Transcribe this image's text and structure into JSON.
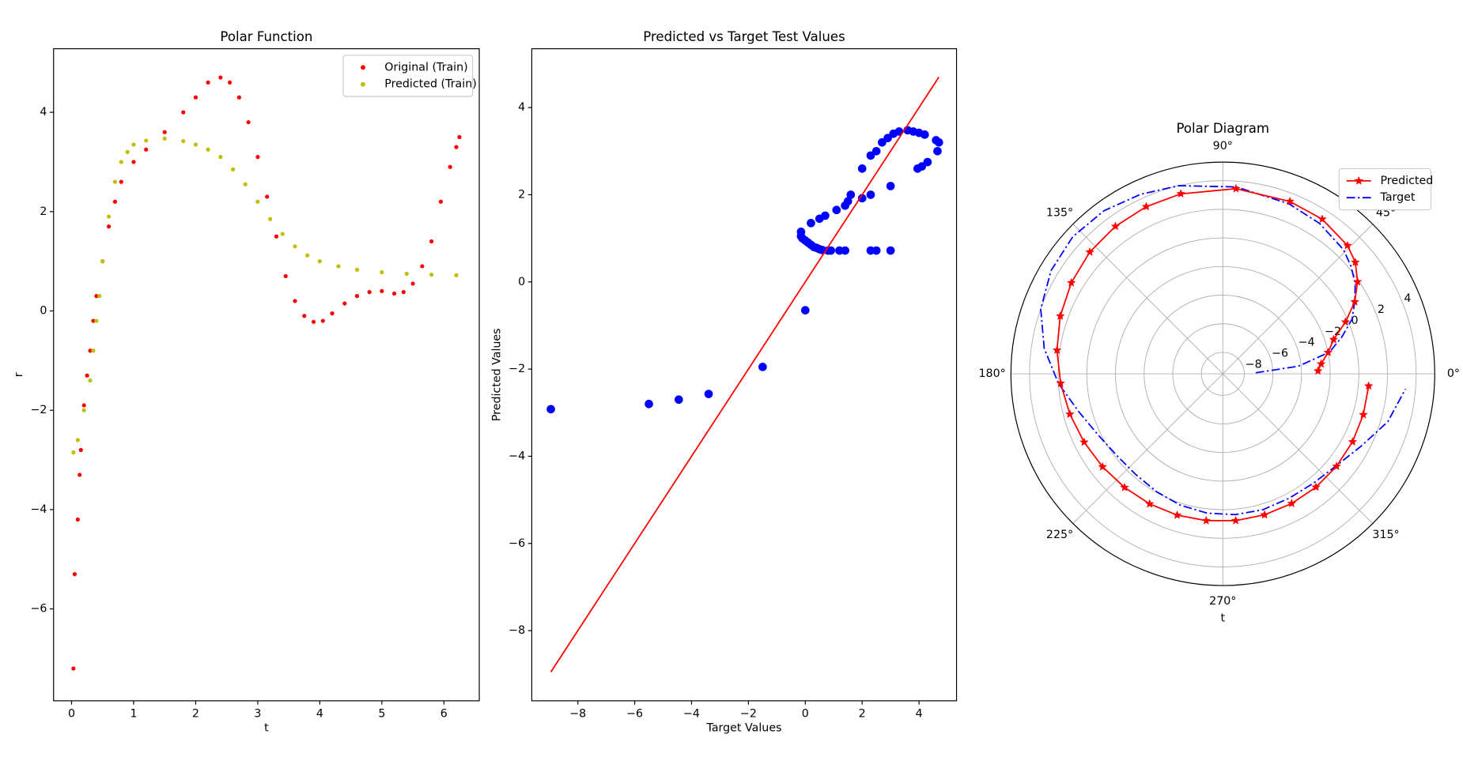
{
  "chart_data": [
    {
      "type": "scatter",
      "title": "Polar Function",
      "xlabel": "t",
      "ylabel": "r",
      "xlim": [
        -0.29,
        6.57
      ],
      "ylim": [
        -7.85,
        5.28
      ],
      "xticks": [
        0,
        1,
        2,
        3,
        4,
        5,
        6
      ],
      "yticks": [
        {
          "value": -6,
          "label": "−6"
        },
        {
          "value": -4,
          "label": "−4"
        },
        {
          "value": -2,
          "label": "−2"
        },
        0,
        2,
        4
      ],
      "legend": "upper right",
      "series": [
        {
          "name": "Original (Train)",
          "color": "#ff0000",
          "marker": "o",
          "linestyle": "none",
          "x": [
            0.03,
            0.05,
            0.1,
            0.13,
            0.15,
            0.2,
            0.25,
            0.3,
            0.35,
            0.4,
            0.5,
            0.6,
            0.7,
            0.8,
            1.0,
            1.2,
            1.5,
            1.8,
            2.0,
            2.2,
            2.4,
            2.55,
            2.7,
            2.85,
            3.0,
            3.15,
            3.3,
            3.45,
            3.6,
            3.75,
            3.9,
            4.05,
            4.2,
            4.4,
            4.6,
            4.8,
            5.0,
            5.2,
            5.35,
            5.5,
            5.65,
            5.8,
            5.95,
            6.1,
            6.2,
            6.25
          ],
          "values": [
            -7.2,
            -5.3,
            -4.2,
            -3.3,
            -2.8,
            -1.9,
            -1.3,
            -0.8,
            -0.2,
            0.3,
            1.0,
            1.7,
            2.2,
            2.6,
            3.0,
            3.25,
            3.6,
            4.0,
            4.3,
            4.6,
            4.7,
            4.6,
            4.3,
            3.8,
            3.1,
            2.3,
            1.5,
            0.7,
            0.2,
            -0.1,
            -0.22,
            -0.2,
            -0.05,
            0.15,
            0.3,
            0.38,
            0.4,
            0.35,
            0.38,
            0.55,
            0.9,
            1.4,
            2.2,
            2.9,
            3.3,
            3.5
          ]
        },
        {
          "name": "Predicted (Train)",
          "color": "#bfbf00",
          "marker": "o",
          "linestyle": "none",
          "x": [
            0.03,
            0.1,
            0.2,
            0.3,
            0.35,
            0.4,
            0.45,
            0.5,
            0.6,
            0.7,
            0.8,
            0.9,
            1.0,
            1.2,
            1.5,
            1.8,
            2.0,
            2.2,
            2.4,
            2.6,
            2.8,
            3.0,
            3.2,
            3.4,
            3.6,
            3.8,
            4.0,
            4.3,
            4.6,
            5.0,
            5.4,
            5.8,
            6.2
          ],
          "values": [
            -2.85,
            -2.6,
            -2.0,
            -1.4,
            -0.8,
            -0.2,
            0.3,
            1.0,
            1.9,
            2.6,
            3.0,
            3.2,
            3.35,
            3.43,
            3.47,
            3.42,
            3.35,
            3.25,
            3.1,
            2.85,
            2.55,
            2.2,
            1.85,
            1.55,
            1.3,
            1.12,
            1.0,
            0.9,
            0.83,
            0.78,
            0.75,
            0.73,
            0.72
          ]
        }
      ]
    },
    {
      "type": "scatter",
      "title": "Predicted vs Target Test Values",
      "xlabel": "Target Values",
      "ylabel": "Predicted Values",
      "xlim": [
        -9.62,
        5.32
      ],
      "ylim": [
        -9.61,
        5.35
      ],
      "xticks": [
        {
          "value": -8,
          "label": "−8"
        },
        {
          "value": -6,
          "label": "−6"
        },
        {
          "value": -4,
          "label": "−4"
        },
        {
          "value": -2,
          "label": "−2"
        },
        0,
        2,
        4
      ],
      "yticks": [
        {
          "value": -8,
          "label": "−8"
        },
        {
          "value": -6,
          "label": "−6"
        },
        {
          "value": -4,
          "label": "−4"
        },
        {
          "value": -2,
          "label": "−2"
        },
        0,
        2,
        4
      ],
      "series": [
        {
          "color": "#0000ff",
          "marker": "o",
          "linestyle": "none",
          "x": [
            -8.95,
            -5.5,
            -4.45,
            -3.4,
            -1.5,
            0,
            -0.15,
            -0.15,
            -0.1,
            0,
            0.1,
            0.2,
            0.3,
            0.4,
            0.5,
            0.6,
            0.8,
            0.9,
            1.2,
            1.4,
            2.3,
            2.5,
            3.0,
            0.2,
            0.5,
            0.7,
            1.1,
            1.4,
            1.5,
            1.6,
            2.0,
            2.3,
            2.0,
            2.3,
            2.5,
            2.7,
            2.9,
            3.1,
            3.3,
            3.6,
            3.8,
            4.0,
            4.2,
            4.6,
            4.7,
            4.65,
            4.3,
            4.1,
            3.95,
            3.0
          ],
          "values": [
            -2.92,
            -2.8,
            -2.7,
            -2.57,
            -1.95,
            -0.65,
            1.15,
            1.05,
            1.0,
            0.95,
            0.9,
            0.85,
            0.8,
            0.78,
            0.75,
            0.73,
            0.72,
            0.72,
            0.72,
            0.72,
            0.72,
            0.72,
            0.72,
            1.35,
            1.45,
            1.52,
            1.65,
            1.75,
            1.85,
            2.0,
            1.92,
            2.0,
            2.6,
            2.9,
            3.0,
            3.2,
            3.3,
            3.4,
            3.45,
            3.48,
            3.45,
            3.42,
            3.38,
            3.25,
            3.2,
            3.0,
            2.75,
            2.65,
            2.6,
            2.2
          ]
        },
        {
          "color": "#ff0000",
          "marker": "none",
          "linestyle": "solid",
          "x": [
            -8.95,
            4.7
          ],
          "values": [
            -8.95,
            4.7
          ]
        }
      ]
    },
    {
      "type": "polar",
      "title": "Polar Diagram",
      "xlabel": "t",
      "rlim": [
        -9.5,
        5.3
      ],
      "rticks": [
        {
          "value": -8,
          "label": "−8"
        },
        {
          "value": -6,
          "label": "−6"
        },
        {
          "value": -4,
          "label": "−4"
        },
        {
          "value": -2,
          "label": "−2"
        },
        0,
        2,
        4
      ],
      "thetaticks": [
        {
          "value": 0,
          "label": "0°"
        },
        {
          "value": 45,
          "label": "45°"
        },
        {
          "value": 90,
          "label": "90°"
        },
        {
          "value": 135,
          "label": "135°"
        },
        {
          "value": 180,
          "label": "180°"
        },
        {
          "value": 225,
          "label": "225°"
        },
        {
          "value": 270,
          "label": "270°"
        },
        {
          "value": 315,
          "label": "315°"
        }
      ],
      "legend": "upper right",
      "theta": [
        0.03,
        0.1,
        0.2,
        0.3,
        0.4,
        0.5,
        0.6,
        0.7,
        0.8,
        1.0,
        1.2,
        1.5,
        1.8,
        2.0,
        2.2,
        2.4,
        2.6,
        2.8,
        3.0,
        3.2,
        3.4,
        3.6,
        3.8,
        4.0,
        4.2,
        4.4,
        4.6,
        4.8,
        5.0,
        5.2,
        5.4,
        5.6,
        5.8,
        6.0,
        6.2
      ],
      "series": [
        {
          "name": "Predicted",
          "color": "#ff0000",
          "marker": "*",
          "linestyle": "solid",
          "values": [
            -2.85,
            -2.6,
            -2.0,
            -1.4,
            -0.2,
            1.0,
            1.9,
            2.6,
            3.0,
            3.35,
            3.43,
            3.47,
            3.42,
            3.35,
            3.25,
            3.1,
            2.85,
            2.55,
            2.2,
            1.85,
            1.55,
            1.3,
            1.12,
            1.0,
            0.93,
            0.88,
            0.83,
            0.8,
            0.78,
            0.76,
            0.75,
            0.74,
            0.73,
            0.72,
            0.72
          ]
        },
        {
          "name": "Target",
          "color": "#0000ff",
          "marker": "none",
          "linestyle": "dashdot",
          "values": [
            -7.2,
            -4.2,
            -1.9,
            -0.8,
            0.3,
            1.0,
            1.7,
            2.2,
            2.6,
            3.0,
            3.25,
            3.6,
            4.0,
            4.3,
            4.6,
            4.7,
            4.5,
            4.0,
            3.1,
            2.0,
            0.9,
            0.2,
            -0.15,
            -0.2,
            -0.05,
            0.15,
            0.3,
            0.38,
            0.4,
            0.35,
            0.42,
            0.7,
            1.4,
            2.5,
            3.3
          ]
        }
      ]
    }
  ]
}
